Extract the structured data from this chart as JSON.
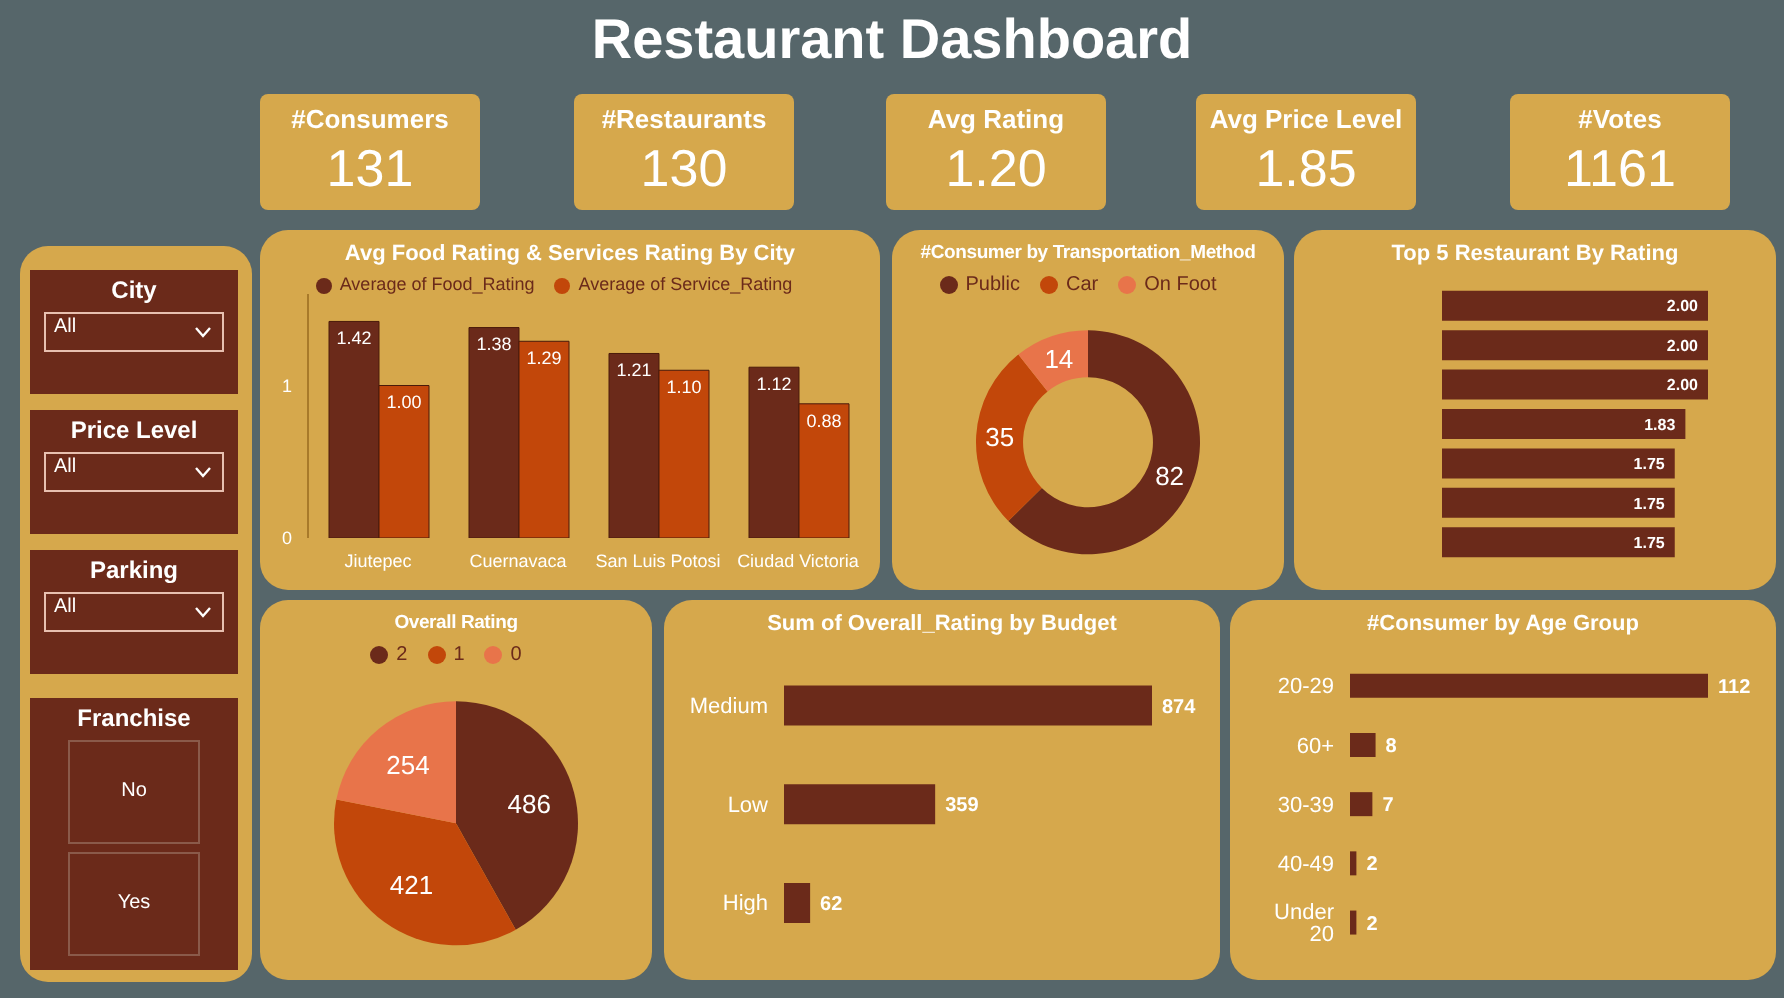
{
  "chart_data": [
    {
      "type": "other",
      "title": "Restaurant Dashboard",
      "categories": [
        "#Consumers",
        "#Restaurants",
        "Avg Rating",
        "Avg Price Level",
        "#Votes"
      ],
      "value_labels": [
        "131",
        "130",
        "1.20",
        "1.85",
        "1161"
      ]
    },
    {
      "type": "other",
      "categories": [
        "City",
        "Price Level",
        "Parking",
        "Franchise"
      ],
      "annotations": [
        "All",
        "All",
        "All",
        "No",
        "Yes"
      ]
    },
    {
      "type": "bar",
      "title": "Avg Food Rating & Services Rating By City",
      "categories": [
        "Jiutepec",
        "Cuernavaca",
        "San Luis Potosi",
        "Ciudad Victoria"
      ],
      "series": [
        {
          "name": "Average of Food_Rating",
          "color": "#6b2a1a",
          "values": [
            1.42,
            1.38,
            1.21,
            1.12
          ],
          "value_labels": [
            "1.42",
            "1.38",
            "1.21",
            "1.12"
          ]
        },
        {
          "name": "Average of Service_Rating",
          "color": "#c2470a",
          "values": [
            1.0,
            1.29,
            1.1,
            0.88
          ],
          "value_labels": [
            "1.00",
            "1.29",
            "1.10",
            "0.88"
          ]
        }
      ],
      "ylim": [
        0,
        1.6
      ],
      "yticks": [
        0,
        1
      ],
      "legend": "top"
    },
    {
      "type": "donut",
      "title": "#Consumer by Transportation_Method",
      "categories": [
        "Public",
        "Car",
        "On Foot"
      ],
      "values": [
        82,
        35,
        14
      ],
      "colors": [
        "#6b2a1a",
        "#c2470a",
        "#e8744a"
      ],
      "data_labels": true,
      "legend": "top"
    },
    {
      "type": "bar",
      "orientation": "horizontal",
      "title": "Top 5 Restaurant By Rating",
      "categories": [
        null,
        null,
        null,
        null,
        null,
        null,
        null
      ],
      "values": [
        2.0,
        2.0,
        2.0,
        1.83,
        1.75,
        1.75,
        1.75
      ],
      "value_labels": [
        "2.00",
        "2.00",
        "2.00",
        "1.83",
        "1.75",
        "1.75",
        "1.75"
      ],
      "color": "#6b2a1a"
    },
    {
      "type": "pie",
      "title": "Overall Rating",
      "categories": [
        "2",
        "1",
        "0"
      ],
      "values": [
        486,
        421,
        254
      ],
      "colors": [
        "#6b2a1a",
        "#c2470a",
        "#e8744a"
      ],
      "data_labels": true,
      "legend": "top"
    },
    {
      "type": "bar",
      "orientation": "horizontal",
      "title": "Sum of Overall_Rating by Budget",
      "categories": [
        "Medium",
        "Low",
        "High"
      ],
      "values": [
        874,
        359,
        62
      ],
      "color": "#6b2a1a",
      "data_labels": true
    },
    {
      "type": "bar",
      "orientation": "horizontal",
      "title": "#Consumer by Age Group",
      "categories": [
        "20-29",
        "60+",
        "30-39",
        "40-49",
        "Under 20"
      ],
      "values": [
        112,
        8,
        7,
        2,
        2
      ],
      "color": "#6b2a1a",
      "data_labels": true
    }
  ]
}
